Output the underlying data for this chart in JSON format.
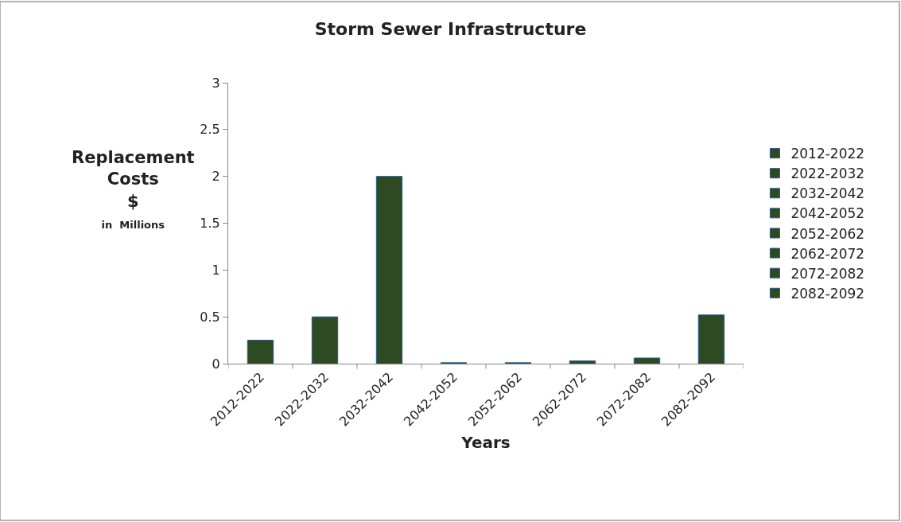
{
  "chart_data": {
    "type": "bar",
    "title": "Storm Sewer Infrastructure",
    "xlabel": "Years",
    "ylabel": "Replacement\nCosts\n$\nin  Millions",
    "categories": [
      "2012-2022",
      "2022-2032",
      "2032-2042",
      "2042-2052",
      "2052-2062",
      "2062-2072",
      "2072-2082",
      "2082-2092"
    ],
    "series": [
      {
        "name": "2012-2022",
        "color": "#2d4a22",
        "values": [
          0.25,
          null,
          null,
          null,
          null,
          null,
          null,
          null
        ]
      },
      {
        "name": "2022-2032",
        "color": "#2d4a22",
        "values": [
          null,
          0.5,
          null,
          null,
          null,
          null,
          null,
          null
        ]
      },
      {
        "name": "2032-2042",
        "color": "#2d4a22",
        "values": [
          null,
          null,
          2.0,
          null,
          null,
          null,
          null,
          null
        ]
      },
      {
        "name": "2042-2052",
        "color": "#2d4a22",
        "values": [
          null,
          null,
          null,
          0.01,
          null,
          null,
          null,
          null
        ]
      },
      {
        "name": "2052-2062",
        "color": "#2d4a22",
        "values": [
          null,
          null,
          null,
          null,
          0.01,
          null,
          null,
          null
        ]
      },
      {
        "name": "2062-2072",
        "color": "#2d4a22",
        "values": [
          null,
          null,
          null,
          null,
          null,
          0.03,
          null,
          null
        ]
      },
      {
        "name": "2072-2082",
        "color": "#2d4a22",
        "values": [
          null,
          null,
          null,
          null,
          null,
          null,
          0.06,
          null
        ]
      },
      {
        "name": "2082-2092",
        "color": "#2d4a22",
        "values": [
          null,
          null,
          null,
          null,
          null,
          null,
          null,
          0.52
        ]
      }
    ],
    "ylim": [
      0,
      3
    ],
    "yticks": [
      0,
      0.5,
      1,
      1.5,
      2,
      2.5,
      3
    ],
    "grid": false,
    "legend": "right"
  }
}
